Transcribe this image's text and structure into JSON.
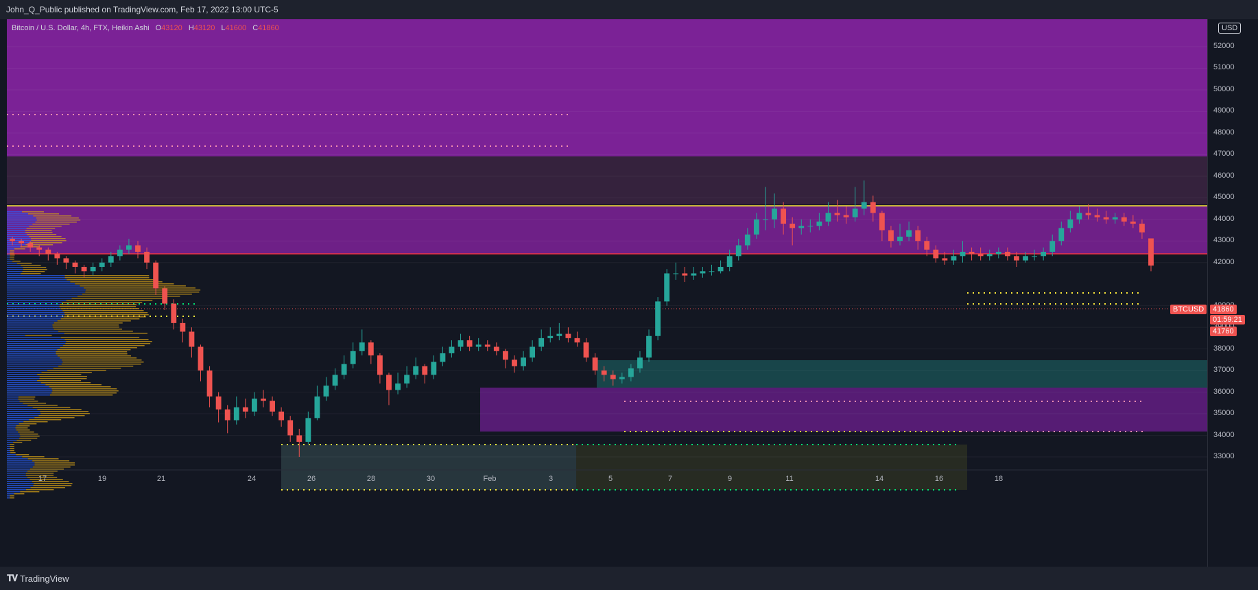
{
  "header": {
    "published": "John_Q_Public published on TradingView.com, Feb 17, 2022 13:00 UTC-5"
  },
  "legend": {
    "symbol": "Bitcoin / U.S. Dollar, 4h, FTX, Heikin Ashi",
    "open_label": "O",
    "open": "43120",
    "high_label": "H",
    "high": "43120",
    "low_label": "L",
    "low": "41600",
    "close_label": "C",
    "close": "41860"
  },
  "axis": {
    "currency": "USD",
    "last_symbol": "BTCUSD",
    "last_price": "41860",
    "countdown": "01:59:21",
    "low_price": "41760"
  },
  "footer": {
    "brand": "TradingView"
  },
  "colors": {
    "background": "#131722",
    "up": "#26a69a",
    "down": "#ef5350",
    "zone_magenta": "#8e24aa",
    "line_yellow": "#ffeb3b",
    "line_red": "#f23645",
    "profile_blue": "#2962ff",
    "profile_gold": "#d4a017"
  },
  "chart_data": {
    "type": "candlestick",
    "ylim": [
      32500,
      53500
    ],
    "y_ticks": [
      33000,
      34000,
      35000,
      36000,
      37000,
      38000,
      39000,
      40000,
      42000,
      43000,
      44000,
      45000,
      46000,
      47000,
      48000,
      49000,
      50000,
      51000,
      52000
    ],
    "x_ticks": [
      "17",
      "19",
      "21",
      "24",
      "26",
      "28",
      "30",
      "Feb",
      "3",
      "5",
      "7",
      "9",
      "11",
      "14",
      "16",
      "18"
    ],
    "candles": [
      {
        "o": 43100,
        "c": 43000,
        "h": 43200,
        "l": 42800
      },
      {
        "o": 43000,
        "c": 42900,
        "h": 43100,
        "l": 42700
      },
      {
        "o": 42900,
        "c": 42700,
        "h": 43000,
        "l": 42500
      },
      {
        "o": 42700,
        "c": 42600,
        "h": 42800,
        "l": 42300
      },
      {
        "o": 42600,
        "c": 42400,
        "h": 42700,
        "l": 42100
      },
      {
        "o": 42400,
        "c": 42200,
        "h": 42500,
        "l": 41900
      },
      {
        "o": 42200,
        "c": 42000,
        "h": 42300,
        "l": 41700
      },
      {
        "o": 42000,
        "c": 41800,
        "h": 42100,
        "l": 41500
      },
      {
        "o": 41800,
        "c": 41600,
        "h": 41900,
        "l": 41300
      },
      {
        "o": 41600,
        "c": 41800,
        "h": 42000,
        "l": 41400
      },
      {
        "o": 41800,
        "c": 42000,
        "h": 42200,
        "l": 41600
      },
      {
        "o": 42000,
        "c": 42300,
        "h": 42500,
        "l": 41800
      },
      {
        "o": 42300,
        "c": 42600,
        "h": 42800,
        "l": 42100
      },
      {
        "o": 42600,
        "c": 42800,
        "h": 43100,
        "l": 42400
      },
      {
        "o": 42800,
        "c": 42500,
        "h": 43000,
        "l": 42200
      },
      {
        "o": 42500,
        "c": 42000,
        "h": 42700,
        "l": 41700
      },
      {
        "o": 42000,
        "c": 40800,
        "h": 42100,
        "l": 40500
      },
      {
        "o": 40800,
        "c": 40100,
        "h": 40900,
        "l": 39800
      },
      {
        "o": 40100,
        "c": 39200,
        "h": 40300,
        "l": 38900
      },
      {
        "o": 39200,
        "c": 38800,
        "h": 39400,
        "l": 38300
      },
      {
        "o": 38800,
        "c": 38100,
        "h": 39000,
        "l": 37600
      },
      {
        "o": 38100,
        "c": 37000,
        "h": 38200,
        "l": 36500
      },
      {
        "o": 37000,
        "c": 35800,
        "h": 37200,
        "l": 35300
      },
      {
        "o": 35800,
        "c": 35200,
        "h": 36000,
        "l": 34600
      },
      {
        "o": 35200,
        "c": 34700,
        "h": 35400,
        "l": 34100
      },
      {
        "o": 34700,
        "c": 35300,
        "h": 35800,
        "l": 34500
      },
      {
        "o": 35300,
        "c": 35100,
        "h": 35700,
        "l": 34800
      },
      {
        "o": 35100,
        "c": 35700,
        "h": 36000,
        "l": 34900
      },
      {
        "o": 35700,
        "c": 35600,
        "h": 36100,
        "l": 35300
      },
      {
        "o": 35600,
        "c": 35100,
        "h": 35800,
        "l": 34900
      },
      {
        "o": 35100,
        "c": 34700,
        "h": 35300,
        "l": 34400
      },
      {
        "o": 34700,
        "c": 34000,
        "h": 34900,
        "l": 33700
      },
      {
        "o": 34000,
        "c": 33700,
        "h": 34300,
        "l": 33000
      },
      {
        "o": 33700,
        "c": 34800,
        "h": 35100,
        "l": 33600
      },
      {
        "o": 34800,
        "c": 35800,
        "h": 36300,
        "l": 34700
      },
      {
        "o": 35800,
        "c": 36300,
        "h": 36700,
        "l": 35600
      },
      {
        "o": 36300,
        "c": 36800,
        "h": 37100,
        "l": 36100
      },
      {
        "o": 36800,
        "c": 37300,
        "h": 37700,
        "l": 36600
      },
      {
        "o": 37300,
        "c": 37900,
        "h": 38300,
        "l": 37100
      },
      {
        "o": 37900,
        "c": 38300,
        "h": 38900,
        "l": 37700
      },
      {
        "o": 38300,
        "c": 37700,
        "h": 38400,
        "l": 37300
      },
      {
        "o": 37700,
        "c": 36800,
        "h": 37800,
        "l": 36400
      },
      {
        "o": 36800,
        "c": 36100,
        "h": 36900,
        "l": 35400
      },
      {
        "o": 36100,
        "c": 36400,
        "h": 36900,
        "l": 35900
      },
      {
        "o": 36400,
        "c": 36800,
        "h": 37200,
        "l": 36200
      },
      {
        "o": 36800,
        "c": 37200,
        "h": 37600,
        "l": 36600
      },
      {
        "o": 37200,
        "c": 36800,
        "h": 37300,
        "l": 36400
      },
      {
        "o": 36800,
        "c": 37400,
        "h": 37700,
        "l": 36600
      },
      {
        "o": 37400,
        "c": 37800,
        "h": 38100,
        "l": 37200
      },
      {
        "o": 37800,
        "c": 38100,
        "h": 38400,
        "l": 37600
      },
      {
        "o": 38100,
        "c": 38400,
        "h": 38700,
        "l": 37900
      },
      {
        "o": 38400,
        "c": 38100,
        "h": 38600,
        "l": 37900
      },
      {
        "o": 38100,
        "c": 38200,
        "h": 38500,
        "l": 37900
      },
      {
        "o": 38200,
        "c": 38100,
        "h": 38400,
        "l": 37900
      },
      {
        "o": 38100,
        "c": 37900,
        "h": 38300,
        "l": 37700
      },
      {
        "o": 37900,
        "c": 37500,
        "h": 38000,
        "l": 37100
      },
      {
        "o": 37500,
        "c": 37200,
        "h": 37700,
        "l": 36900
      },
      {
        "o": 37200,
        "c": 37600,
        "h": 37900,
        "l": 37000
      },
      {
        "o": 37600,
        "c": 38100,
        "h": 38400,
        "l": 37400
      },
      {
        "o": 38100,
        "c": 38500,
        "h": 38900,
        "l": 37900
      },
      {
        "o": 38500,
        "c": 38600,
        "h": 39000,
        "l": 38300
      },
      {
        "o": 38600,
        "c": 38700,
        "h": 39200,
        "l": 38400
      },
      {
        "o": 38700,
        "c": 38500,
        "h": 39000,
        "l": 38300
      },
      {
        "o": 38500,
        "c": 38300,
        "h": 38800,
        "l": 38100
      },
      {
        "o": 38300,
        "c": 37600,
        "h": 38500,
        "l": 37400
      },
      {
        "o": 37600,
        "c": 37000,
        "h": 37800,
        "l": 36800
      },
      {
        "o": 37000,
        "c": 36800,
        "h": 37200,
        "l": 36500
      },
      {
        "o": 36800,
        "c": 36600,
        "h": 37000,
        "l": 36300
      },
      {
        "o": 36600,
        "c": 36700,
        "h": 36900,
        "l": 36400
      },
      {
        "o": 36700,
        "c": 37100,
        "h": 37300,
        "l": 36500
      },
      {
        "o": 37100,
        "c": 37600,
        "h": 37900,
        "l": 36900
      },
      {
        "o": 37600,
        "c": 38600,
        "h": 38900,
        "l": 37400
      },
      {
        "o": 38600,
        "c": 40200,
        "h": 40400,
        "l": 38400
      },
      {
        "o": 40200,
        "c": 41500,
        "h": 41700,
        "l": 40000
      },
      {
        "o": 41500,
        "c": 41500,
        "h": 42000,
        "l": 41200
      },
      {
        "o": 41500,
        "c": 41400,
        "h": 41800,
        "l": 41100
      },
      {
        "o": 41400,
        "c": 41500,
        "h": 41800,
        "l": 41200
      },
      {
        "o": 41500,
        "c": 41600,
        "h": 41800,
        "l": 41300
      },
      {
        "o": 41600,
        "c": 41600,
        "h": 41900,
        "l": 41400
      },
      {
        "o": 41600,
        "c": 41800,
        "h": 42100,
        "l": 41500
      },
      {
        "o": 41800,
        "c": 42300,
        "h": 42600,
        "l": 41600
      },
      {
        "o": 42300,
        "c": 42800,
        "h": 43100,
        "l": 42100
      },
      {
        "o": 42800,
        "c": 43300,
        "h": 43600,
        "l": 42600
      },
      {
        "o": 43300,
        "c": 44000,
        "h": 44300,
        "l": 43100
      },
      {
        "o": 44000,
        "c": 44000,
        "h": 45500,
        "l": 43500
      },
      {
        "o": 44000,
        "c": 44500,
        "h": 45200,
        "l": 43600
      },
      {
        "o": 44500,
        "c": 43800,
        "h": 44800,
        "l": 43300
      },
      {
        "o": 43800,
        "c": 43600,
        "h": 44100,
        "l": 42800
      },
      {
        "o": 43600,
        "c": 43700,
        "h": 44000,
        "l": 43300
      },
      {
        "o": 43700,
        "c": 43700,
        "h": 44000,
        "l": 43400
      },
      {
        "o": 43700,
        "c": 43900,
        "h": 44300,
        "l": 43500
      },
      {
        "o": 43900,
        "c": 44300,
        "h": 44800,
        "l": 43700
      },
      {
        "o": 44300,
        "c": 44200,
        "h": 44900,
        "l": 43900
      },
      {
        "o": 44200,
        "c": 44100,
        "h": 44600,
        "l": 43800
      },
      {
        "o": 44100,
        "c": 44500,
        "h": 45500,
        "l": 43900
      },
      {
        "o": 44500,
        "c": 44800,
        "h": 45800,
        "l": 44200
      },
      {
        "o": 44800,
        "c": 44300,
        "h": 45100,
        "l": 43900
      },
      {
        "o": 44300,
        "c": 43500,
        "h": 44400,
        "l": 43000
      },
      {
        "o": 43500,
        "c": 43000,
        "h": 43700,
        "l": 42700
      },
      {
        "o": 43000,
        "c": 43200,
        "h": 43800,
        "l": 42800
      },
      {
        "o": 43200,
        "c": 43500,
        "h": 43900,
        "l": 43000
      },
      {
        "o": 43500,
        "c": 43000,
        "h": 43700,
        "l": 42600
      },
      {
        "o": 43000,
        "c": 42600,
        "h": 43200,
        "l": 42300
      },
      {
        "o": 42600,
        "c": 42200,
        "h": 42800,
        "l": 42000
      },
      {
        "o": 42200,
        "c": 42100,
        "h": 42500,
        "l": 41900
      },
      {
        "o": 42100,
        "c": 42300,
        "h": 42600,
        "l": 41900
      },
      {
        "o": 42300,
        "c": 42500,
        "h": 43000,
        "l": 42000
      },
      {
        "o": 42500,
        "c": 42400,
        "h": 42700,
        "l": 42100
      },
      {
        "o": 42400,
        "c": 42300,
        "h": 42700,
        "l": 42100
      },
      {
        "o": 42300,
        "c": 42400,
        "h": 42600,
        "l": 42100
      },
      {
        "o": 42400,
        "c": 42500,
        "h": 42700,
        "l": 42200
      },
      {
        "o": 42500,
        "c": 42300,
        "h": 42700,
        "l": 42100
      },
      {
        "o": 42300,
        "c": 42100,
        "h": 42500,
        "l": 41800
      },
      {
        "o": 42100,
        "c": 42300,
        "h": 42500,
        "l": 42000
      },
      {
        "o": 42300,
        "c": 42300,
        "h": 42600,
        "l": 42100
      },
      {
        "o": 42300,
        "c": 42500,
        "h": 42700,
        "l": 42100
      },
      {
        "o": 42500,
        "c": 43000,
        "h": 43300,
        "l": 42300
      },
      {
        "o": 43000,
        "c": 43600,
        "h": 43900,
        "l": 42800
      },
      {
        "o": 43600,
        "c": 44000,
        "h": 44400,
        "l": 43400
      },
      {
        "o": 44000,
        "c": 44300,
        "h": 44600,
        "l": 43800
      },
      {
        "o": 44300,
        "c": 44200,
        "h": 44700,
        "l": 44000
      },
      {
        "o": 44200,
        "c": 44100,
        "h": 44500,
        "l": 43900
      },
      {
        "o": 44100,
        "c": 44000,
        "h": 44400,
        "l": 43800
      },
      {
        "o": 44000,
        "c": 44100,
        "h": 44300,
        "l": 43800
      },
      {
        "o": 44100,
        "c": 43900,
        "h": 44300,
        "l": 43700
      },
      {
        "o": 43900,
        "c": 43800,
        "h": 44200,
        "l": 43600
      },
      {
        "o": 43800,
        "c": 43400,
        "h": 44000,
        "l": 43100
      },
      {
        "o": 43120,
        "c": 41860,
        "h": 43120,
        "l": 41600
      }
    ]
  }
}
